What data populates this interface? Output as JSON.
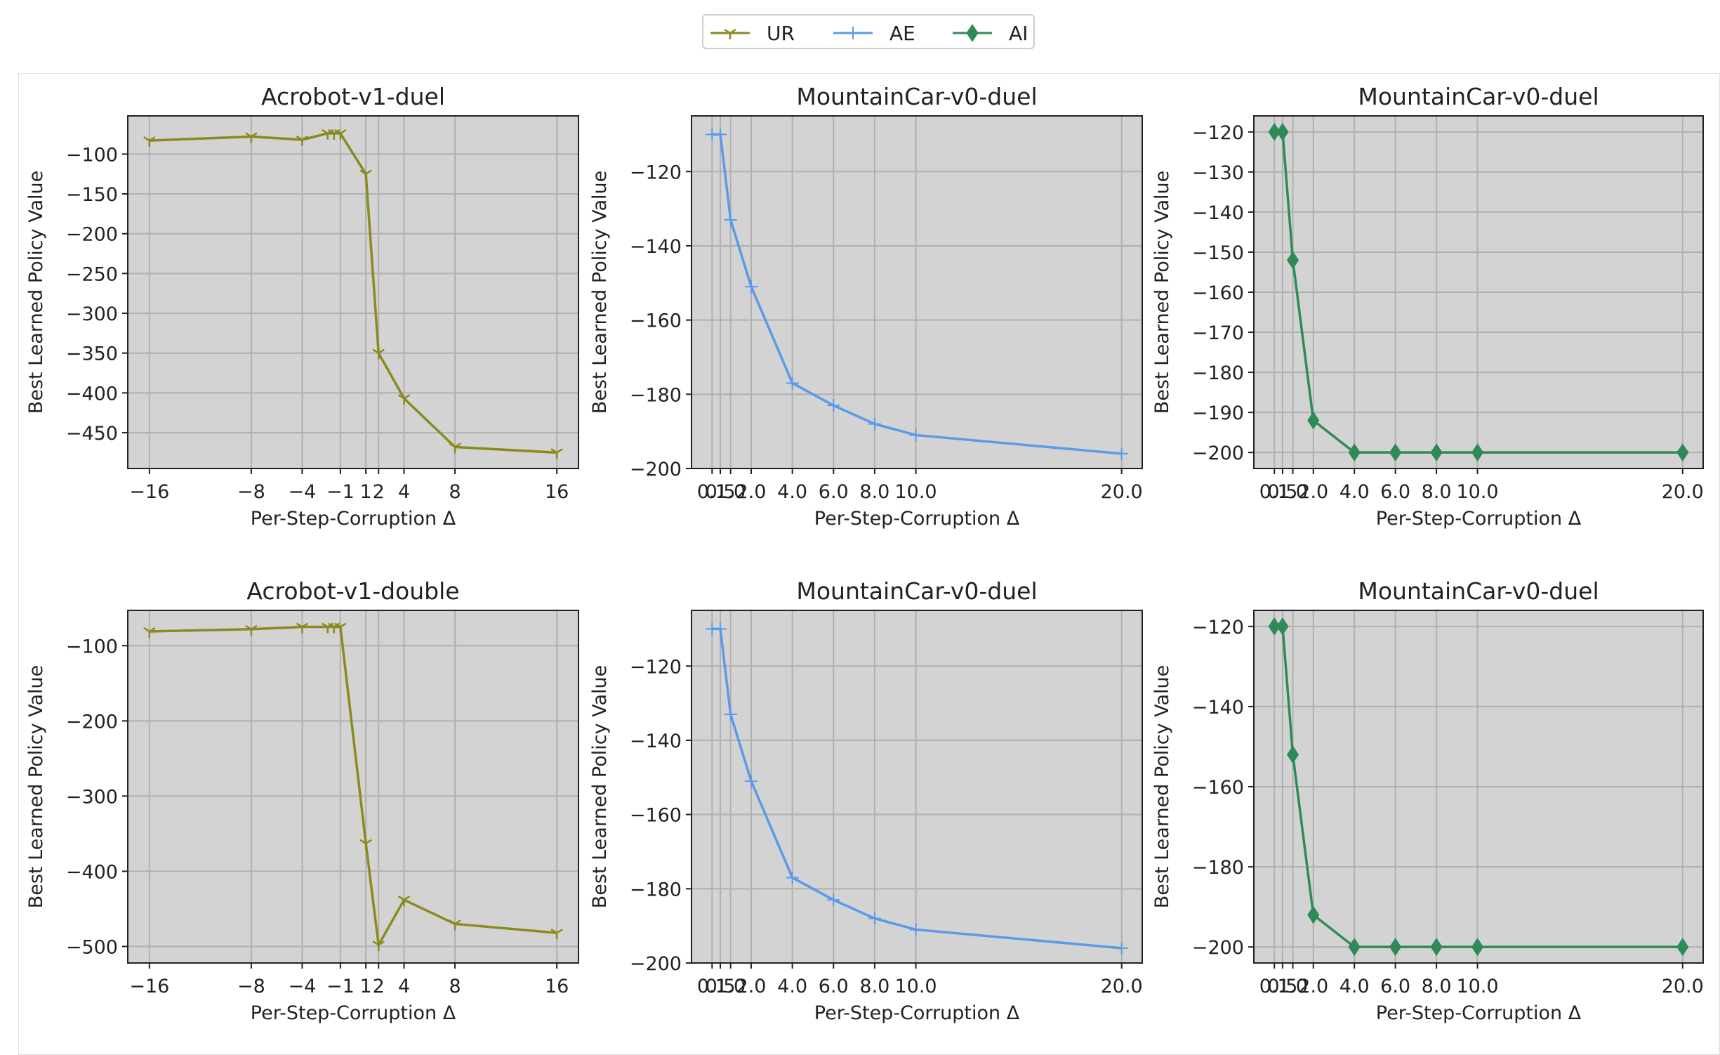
{
  "legend": {
    "entries": [
      {
        "label": "UR",
        "color": "#8a8a1f",
        "marker": "tri-down"
      },
      {
        "label": "AE",
        "color": "#5b9ae8",
        "marker": "plus"
      },
      {
        "label": "AI",
        "color": "#2e8b57",
        "marker": "diamond"
      }
    ]
  },
  "chart_data": [
    {
      "type": "line",
      "title": "Acrobot-v1-duel",
      "xlabel": "Per-Step-Corruption Δ",
      "ylabel": "Best Learned Policy Value",
      "series_name": "UR",
      "x": [
        -16,
        -8,
        -4,
        -2,
        -1.5,
        -1,
        1,
        2,
        4,
        8,
        16
      ],
      "y": [
        -83,
        -78,
        -82,
        -74,
        -74,
        -74,
        -125,
        -350,
        -407,
        -468,
        -475
      ],
      "xlim": [
        -17.7,
        17.7
      ],
      "ylim": [
        -495,
        -52
      ],
      "xticks": [
        -16,
        -8,
        -4,
        -1,
        1,
        2,
        4,
        8,
        16
      ],
      "xtick_labels": [
        "−16",
        "−8",
        "−4",
        "−1",
        "1",
        "2",
        "4",
        "8",
        "16"
      ],
      "yticks": [
        -100,
        -150,
        -200,
        -250,
        -300,
        -350,
        -400,
        -450
      ],
      "ytick_labels": [
        "−100",
        "−150",
        "−200",
        "−250",
        "−300",
        "−350",
        "−400",
        "−450"
      ]
    },
    {
      "type": "line",
      "title": "MountainCar-v0-duel",
      "xlabel": "Per-Step-Corruption Δ",
      "ylabel": "Best Learned Policy Value",
      "series_name": "AE",
      "x": [
        0.1,
        0.5,
        1.0,
        2.0,
        4.0,
        6.0,
        8.0,
        10.0,
        20.0
      ],
      "y": [
        -110,
        -110,
        -133,
        -151,
        -177,
        -183,
        -188,
        -191,
        -196
      ],
      "xlim": [
        -0.9,
        21.0
      ],
      "ylim": [
        -200,
        -105
      ],
      "xticks": [
        0.1,
        0.5,
        1.0,
        2.0,
        4.0,
        6.0,
        8.0,
        10.0,
        20.0
      ],
      "xtick_labels": [
        "0.1",
        "0.5",
        "1.0",
        "2.0",
        "4.0",
        "6.0",
        "8.0",
        "10.0",
        "20.0"
      ],
      "yticks": [
        -120,
        -140,
        -160,
        -180,
        -200
      ],
      "ytick_labels": [
        "−120",
        "−140",
        "−160",
        "−180",
        "−200"
      ]
    },
    {
      "type": "line",
      "title": "MountainCar-v0-duel",
      "xlabel": "Per-Step-Corruption Δ",
      "ylabel": "Best Learned Policy Value",
      "series_name": "AI",
      "x": [
        0.1,
        0.5,
        1.0,
        2.0,
        4.0,
        6.0,
        8.0,
        10.0,
        20.0
      ],
      "y": [
        -120,
        -120,
        -152,
        -192,
        -200,
        -200,
        -200,
        -200,
        -200
      ],
      "xlim": [
        -0.9,
        21.0
      ],
      "ylim": [
        -204,
        -116
      ],
      "xticks": [
        0.1,
        0.5,
        1.0,
        2.0,
        4.0,
        6.0,
        8.0,
        10.0,
        20.0
      ],
      "xtick_labels": [
        "0.1",
        "0.5",
        "1.0",
        "2.0",
        "4.0",
        "6.0",
        "8.0",
        "10.0",
        "20.0"
      ],
      "yticks": [
        -120,
        -130,
        -140,
        -150,
        -160,
        -170,
        -180,
        -190,
        -200
      ],
      "ytick_labels": [
        "−120",
        "−130",
        "−140",
        "−150",
        "−160",
        "−170",
        "−180",
        "−190",
        "−200"
      ]
    },
    {
      "type": "line",
      "title": "Acrobot-v1-double",
      "xlabel": "Per-Step-Corruption Δ",
      "ylabel": "Best Learned Policy Value",
      "series_name": "UR",
      "x": [
        -16,
        -8,
        -4,
        -2,
        -1.5,
        -1,
        1,
        2,
        4,
        8,
        16
      ],
      "y": [
        -81,
        -78,
        -75,
        -75,
        -75,
        -75,
        -363,
        -498,
        -438,
        -470,
        -482
      ],
      "xlim": [
        -17.7,
        17.7
      ],
      "ylim": [
        -522,
        -53
      ],
      "xticks": [
        -16,
        -8,
        -4,
        -1,
        1,
        2,
        4,
        8,
        16
      ],
      "xtick_labels": [
        "−16",
        "−8",
        "−4",
        "−1",
        "1",
        "2",
        "4",
        "8",
        "16"
      ],
      "yticks": [
        -100,
        -200,
        -300,
        -400,
        -500
      ],
      "ytick_labels": [
        "−100",
        "−200",
        "−300",
        "−400",
        "−500"
      ]
    },
    {
      "type": "line",
      "title": "MountainCar-v0-duel",
      "xlabel": "Per-Step-Corruption Δ",
      "ylabel": "Best Learned Policy Value",
      "series_name": "AE",
      "x": [
        0.1,
        0.5,
        1.0,
        2.0,
        4.0,
        6.0,
        8.0,
        10.0,
        20.0
      ],
      "y": [
        -110,
        -110,
        -133,
        -151,
        -177,
        -183,
        -188,
        -191,
        -196
      ],
      "xlim": [
        -0.9,
        21.0
      ],
      "ylim": [
        -200,
        -105
      ],
      "xticks": [
        0.1,
        0.5,
        1.0,
        2.0,
        4.0,
        6.0,
        8.0,
        10.0,
        20.0
      ],
      "xtick_labels": [
        "0.1",
        "0.5",
        "1.0",
        "2.0",
        "4.0",
        "6.0",
        "8.0",
        "10.0",
        "20.0"
      ],
      "yticks": [
        -120,
        -140,
        -160,
        -180,
        -200
      ],
      "ytick_labels": [
        "−120",
        "−140",
        "−160",
        "−180",
        "−200"
      ]
    },
    {
      "type": "line",
      "title": "MountainCar-v0-duel",
      "xlabel": "Per-Step-Corruption Δ",
      "ylabel": "Best Learned Policy Value",
      "series_name": "AI",
      "x": [
        0.1,
        0.5,
        1.0,
        2.0,
        4.0,
        6.0,
        8.0,
        10.0,
        20.0
      ],
      "y": [
        -120,
        -120,
        -152,
        -192,
        -200,
        -200,
        -200,
        -200,
        -200
      ],
      "xlim": [
        -0.9,
        21.0
      ],
      "ylim": [
        -204,
        -116
      ],
      "xticks": [
        0.1,
        0.5,
        1.0,
        2.0,
        4.0,
        6.0,
        8.0,
        10.0,
        20.0
      ],
      "xtick_labels": [
        "0.1",
        "0.5",
        "1.0",
        "2.0",
        "4.0",
        "6.0",
        "8.0",
        "10.0",
        "20.0"
      ],
      "yticks": [
        -120,
        -140,
        -160,
        -180,
        -200
      ],
      "ytick_labels": [
        "−120",
        "−140",
        "−160",
        "−180",
        "−200"
      ]
    }
  ]
}
